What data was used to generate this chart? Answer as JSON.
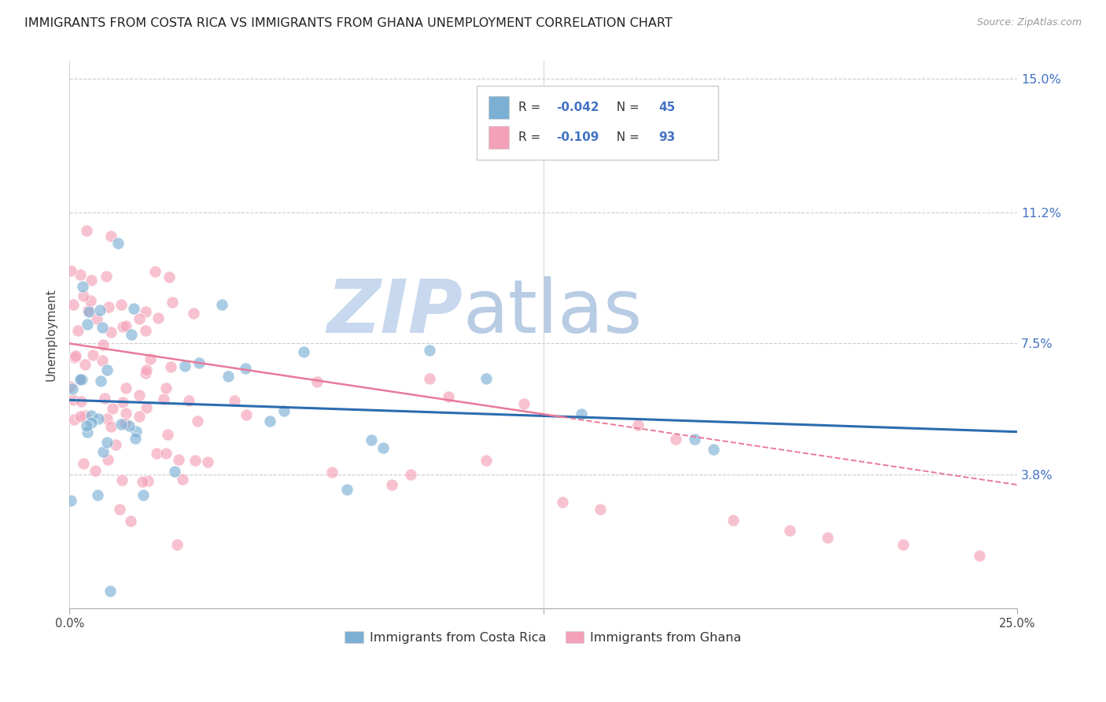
{
  "title": "IMMIGRANTS FROM COSTA RICA VS IMMIGRANTS FROM GHANA UNEMPLOYMENT CORRELATION CHART",
  "source": "Source: ZipAtlas.com",
  "ylabel": "Unemployment",
  "yticks": [
    0.038,
    0.075,
    0.112,
    0.15
  ],
  "ytick_labels": [
    "3.8%",
    "7.5%",
    "11.2%",
    "15.0%"
  ],
  "xlim": [
    0.0,
    0.25
  ],
  "ylim": [
    0.0,
    0.155
  ],
  "watermark_zip": "ZIP",
  "watermark_atlas": "atlas",
  "watermark_color_zip": "#c8d8ee",
  "watermark_color_atlas": "#b8cce4",
  "costa_rica_color": "#7bafd4",
  "ghana_color": "#f4a0b8",
  "costa_rica_line_color": "#2b6cb0",
  "ghana_line_color": "#e87a9a",
  "background_color": "#ffffff",
  "grid_color": "#cccccc",
  "right_axis_color": "#4472c4",
  "title_fontsize": 11.5,
  "source_fontsize": 9,
  "watermark_fontsize_zip": 68,
  "watermark_fontsize_atlas": 68,
  "legend_R_label": "R = ",
  "legend_N_label": "N = ",
  "cr_R_val": "-0.042",
  "cr_N_val": "45",
  "gh_R_val": "-0.109",
  "gh_N_val": "93",
  "cr_trend_start_y": 0.059,
  "cr_trend_end_y": 0.05,
  "gh_trend_start_y": 0.075,
  "gh_trend_end_y": 0.035
}
